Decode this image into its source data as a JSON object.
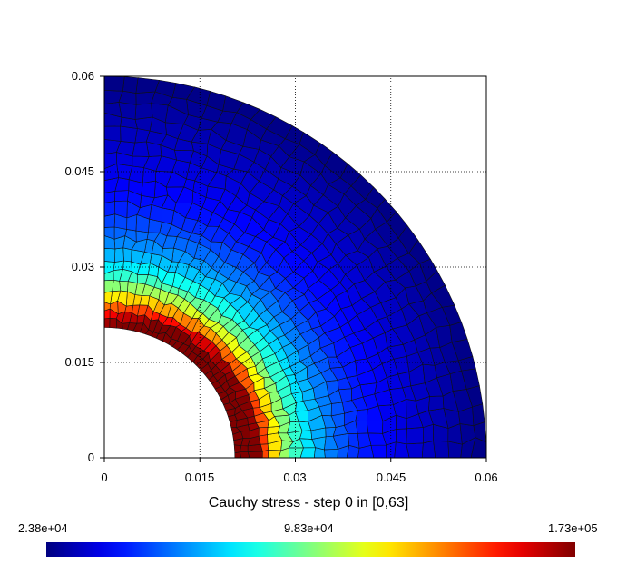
{
  "chart_data": {
    "type": "heatmap",
    "title": "Cauchy stress - step 0 in [0,63]",
    "x_ticks": [
      "0",
      "0.015",
      "0.03",
      "0.045",
      "0.06"
    ],
    "y_ticks": [
      "0",
      "0.015",
      "0.03",
      "0.045",
      "0.06"
    ],
    "xlim": [
      0,
      0.06
    ],
    "ylim": [
      0,
      0.06
    ],
    "grid": true,
    "geometry": {
      "inner_radius": 0.0205,
      "outer_radius": 0.06
    },
    "colorbar": {
      "colormap": "jet",
      "min_label": "2.38e+04",
      "mid_label": "9.83e+04",
      "max_label": "1.73e+05",
      "min": 23800,
      "max": 173000
    },
    "stress_profile": [
      {
        "r": 0.0205,
        "value": 173000
      },
      {
        "r": 0.022,
        "value": 160000
      },
      {
        "r": 0.024,
        "value": 135000
      },
      {
        "r": 0.026,
        "value": 110000
      },
      {
        "r": 0.028,
        "value": 90000
      },
      {
        "r": 0.031,
        "value": 72000
      },
      {
        "r": 0.035,
        "value": 58000
      },
      {
        "r": 0.04,
        "value": 45000
      },
      {
        "r": 0.05,
        "value": 34000
      },
      {
        "r": 0.06,
        "value": 23800
      }
    ]
  }
}
